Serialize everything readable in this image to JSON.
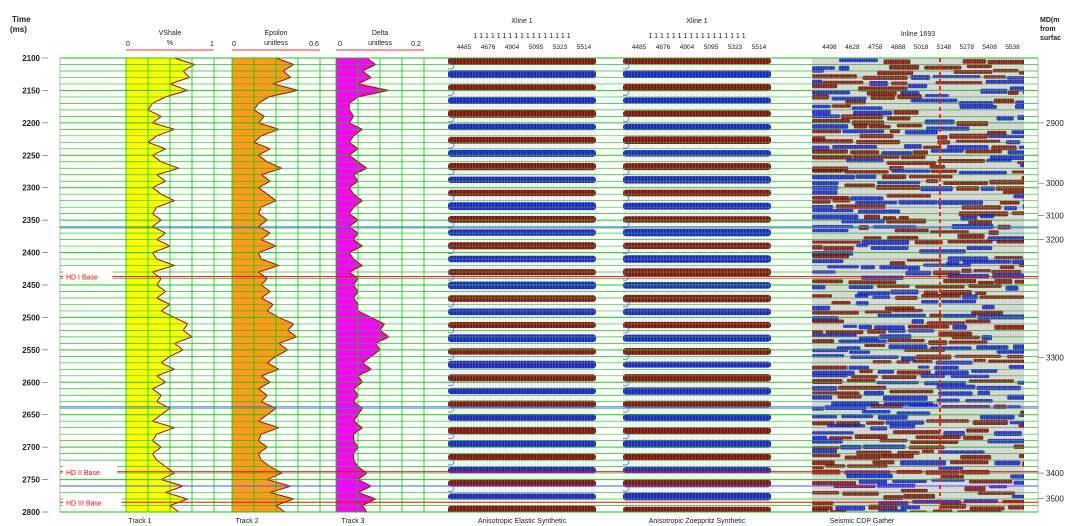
{
  "chart_data": {
    "type": "well-log-seismic-display",
    "time_axis": {
      "label_line1": "Time",
      "label_line2": "(ms)",
      "range": [
        2100,
        2800
      ],
      "ticks": [
        2100,
        2150,
        2200,
        2250,
        2300,
        2350,
        2400,
        2450,
        2500,
        2550,
        2600,
        2650,
        2700,
        2750,
        2800
      ]
    },
    "md_axis": {
      "label_line1": "MD(m",
      "label_line2": "from",
      "label_line3": "surfac",
      "ticks": [
        {
          "md": 2900,
          "time": 2200
        },
        {
          "md": 3000,
          "time": 2293
        },
        {
          "md": 3100,
          "time": 2343
        },
        {
          "md": 3200,
          "time": 2380
        },
        {
          "md": 3300,
          "time": 2562
        },
        {
          "md": 3400,
          "time": 2740
        },
        {
          "md": 3500,
          "time": 2779
        }
      ]
    },
    "horizons": [
      {
        "name": "HD I Base",
        "time": 2437
      },
      {
        "name": "HD II Base",
        "time": 2738
      },
      {
        "name": "HD III Base",
        "time": 2785
      }
    ],
    "blue_markers": [
      2362,
      2638,
      2760
    ],
    "log_tracks": [
      {
        "title": "VShale",
        "unit": "%",
        "min_label": "0",
        "max_label": "1",
        "min": 0,
        "max": 1,
        "fill": "#ffff00",
        "footer": "Track 1",
        "samples": [
          {
            "t": 2100,
            "v": 0.55
          },
          {
            "t": 2110,
            "v": 0.78
          },
          {
            "t": 2120,
            "v": 0.65
          },
          {
            "t": 2130,
            "v": 0.72
          },
          {
            "t": 2140,
            "v": 0.5
          },
          {
            "t": 2150,
            "v": 0.7
          },
          {
            "t": 2160,
            "v": 0.45
          },
          {
            "t": 2170,
            "v": 0.3
          },
          {
            "t": 2180,
            "v": 0.25
          },
          {
            "t": 2190,
            "v": 0.4
          },
          {
            "t": 2200,
            "v": 0.3
          },
          {
            "t": 2210,
            "v": 0.55
          },
          {
            "t": 2220,
            "v": 0.35
          },
          {
            "t": 2230,
            "v": 0.25
          },
          {
            "t": 2240,
            "v": 0.45
          },
          {
            "t": 2250,
            "v": 0.3
          },
          {
            "t": 2260,
            "v": 0.4
          },
          {
            "t": 2270,
            "v": 0.6
          },
          {
            "t": 2280,
            "v": 0.35
          },
          {
            "t": 2290,
            "v": 0.45
          },
          {
            "t": 2300,
            "v": 0.3
          },
          {
            "t": 2310,
            "v": 0.4
          },
          {
            "t": 2320,
            "v": 0.55
          },
          {
            "t": 2330,
            "v": 0.35
          },
          {
            "t": 2340,
            "v": 0.3
          },
          {
            "t": 2350,
            "v": 0.4
          },
          {
            "t": 2360,
            "v": 0.3
          },
          {
            "t": 2370,
            "v": 0.45
          },
          {
            "t": 2380,
            "v": 0.35
          },
          {
            "t": 2390,
            "v": 0.5
          },
          {
            "t": 2400,
            "v": 0.3
          },
          {
            "t": 2410,
            "v": 0.35
          },
          {
            "t": 2420,
            "v": 0.55
          },
          {
            "t": 2430,
            "v": 0.3
          },
          {
            "t": 2440,
            "v": 0.4
          },
          {
            "t": 2450,
            "v": 0.35
          },
          {
            "t": 2460,
            "v": 0.45
          },
          {
            "t": 2470,
            "v": 0.35
          },
          {
            "t": 2480,
            "v": 0.5
          },
          {
            "t": 2490,
            "v": 0.4
          },
          {
            "t": 2500,
            "v": 0.55
          },
          {
            "t": 2510,
            "v": 0.7
          },
          {
            "t": 2520,
            "v": 0.65
          },
          {
            "t": 2530,
            "v": 0.75
          },
          {
            "t": 2540,
            "v": 0.55
          },
          {
            "t": 2550,
            "v": 0.65
          },
          {
            "t": 2560,
            "v": 0.5
          },
          {
            "t": 2570,
            "v": 0.4
          },
          {
            "t": 2580,
            "v": 0.55
          },
          {
            "t": 2590,
            "v": 0.35
          },
          {
            "t": 2600,
            "v": 0.45
          },
          {
            "t": 2610,
            "v": 0.3
          },
          {
            "t": 2620,
            "v": 0.4
          },
          {
            "t": 2630,
            "v": 0.35
          },
          {
            "t": 2640,
            "v": 0.5
          },
          {
            "t": 2650,
            "v": 0.4
          },
          {
            "t": 2660,
            "v": 0.3
          },
          {
            "t": 2670,
            "v": 0.55
          },
          {
            "t": 2680,
            "v": 0.35
          },
          {
            "t": 2690,
            "v": 0.3
          },
          {
            "t": 2700,
            "v": 0.4
          },
          {
            "t": 2710,
            "v": 0.3
          },
          {
            "t": 2720,
            "v": 0.35
          },
          {
            "t": 2730,
            "v": 0.45
          },
          {
            "t": 2740,
            "v": 0.55
          },
          {
            "t": 2750,
            "v": 0.4
          },
          {
            "t": 2760,
            "v": 0.65
          },
          {
            "t": 2770,
            "v": 0.45
          },
          {
            "t": 2780,
            "v": 0.7
          },
          {
            "t": 2790,
            "v": 0.5
          },
          {
            "t": 2800,
            "v": 0.6
          }
        ]
      },
      {
        "title": "Epsilon",
        "unit": "unitless",
        "min_label": "0",
        "max_label": "0.6",
        "min": 0,
        "max": 0.6,
        "fill": "#ff9a1f",
        "footer": "Track 2",
        "samples": [
          {
            "t": 2100,
            "v": 0.3
          },
          {
            "t": 2110,
            "v": 0.42
          },
          {
            "t": 2120,
            "v": 0.35
          },
          {
            "t": 2130,
            "v": 0.4
          },
          {
            "t": 2140,
            "v": 0.28
          },
          {
            "t": 2150,
            "v": 0.45
          },
          {
            "t": 2160,
            "v": 0.25
          },
          {
            "t": 2170,
            "v": 0.18
          },
          {
            "t": 2180,
            "v": 0.15
          },
          {
            "t": 2190,
            "v": 0.22
          },
          {
            "t": 2200,
            "v": 0.18
          },
          {
            "t": 2210,
            "v": 0.32
          },
          {
            "t": 2220,
            "v": 0.2
          },
          {
            "t": 2230,
            "v": 0.15
          },
          {
            "t": 2240,
            "v": 0.26
          },
          {
            "t": 2250,
            "v": 0.18
          },
          {
            "t": 2260,
            "v": 0.24
          },
          {
            "t": 2270,
            "v": 0.34
          },
          {
            "t": 2280,
            "v": 0.2
          },
          {
            "t": 2290,
            "v": 0.26
          },
          {
            "t": 2300,
            "v": 0.18
          },
          {
            "t": 2310,
            "v": 0.24
          },
          {
            "t": 2320,
            "v": 0.3
          },
          {
            "t": 2330,
            "v": 0.2
          },
          {
            "t": 2340,
            "v": 0.18
          },
          {
            "t": 2350,
            "v": 0.24
          },
          {
            "t": 2360,
            "v": 0.18
          },
          {
            "t": 2370,
            "v": 0.26
          },
          {
            "t": 2380,
            "v": 0.2
          },
          {
            "t": 2390,
            "v": 0.3
          },
          {
            "t": 2400,
            "v": 0.18
          },
          {
            "t": 2410,
            "v": 0.2
          },
          {
            "t": 2420,
            "v": 0.32
          },
          {
            "t": 2430,
            "v": 0.18
          },
          {
            "t": 2440,
            "v": 0.24
          },
          {
            "t": 2450,
            "v": 0.2
          },
          {
            "t": 2460,
            "v": 0.26
          },
          {
            "t": 2470,
            "v": 0.2
          },
          {
            "t": 2480,
            "v": 0.28
          },
          {
            "t": 2490,
            "v": 0.24
          },
          {
            "t": 2500,
            "v": 0.32
          },
          {
            "t": 2510,
            "v": 0.42
          },
          {
            "t": 2520,
            "v": 0.38
          },
          {
            "t": 2530,
            "v": 0.44
          },
          {
            "t": 2540,
            "v": 0.32
          },
          {
            "t": 2550,
            "v": 0.38
          },
          {
            "t": 2560,
            "v": 0.3
          },
          {
            "t": 2570,
            "v": 0.24
          },
          {
            "t": 2580,
            "v": 0.32
          },
          {
            "t": 2590,
            "v": 0.2
          },
          {
            "t": 2600,
            "v": 0.26
          },
          {
            "t": 2610,
            "v": 0.18
          },
          {
            "t": 2620,
            "v": 0.24
          },
          {
            "t": 2630,
            "v": 0.2
          },
          {
            "t": 2640,
            "v": 0.3
          },
          {
            "t": 2650,
            "v": 0.24
          },
          {
            "t": 2660,
            "v": 0.18
          },
          {
            "t": 2670,
            "v": 0.32
          },
          {
            "t": 2680,
            "v": 0.2
          },
          {
            "t": 2690,
            "v": 0.18
          },
          {
            "t": 2700,
            "v": 0.24
          },
          {
            "t": 2710,
            "v": 0.18
          },
          {
            "t": 2720,
            "v": 0.2
          },
          {
            "t": 2730,
            "v": 0.26
          },
          {
            "t": 2740,
            "v": 0.34
          },
          {
            "t": 2750,
            "v": 0.24
          },
          {
            "t": 2760,
            "v": 0.4
          },
          {
            "t": 2770,
            "v": 0.26
          },
          {
            "t": 2780,
            "v": 0.42
          },
          {
            "t": 2790,
            "v": 0.3
          },
          {
            "t": 2800,
            "v": 0.36
          }
        ]
      },
      {
        "title": "Delta",
        "unit": "unitless",
        "min_label": "0",
        "max_label": "0.2",
        "min": 0,
        "max": 0.2,
        "fill": "#ff00ff",
        "footer": "Track 3",
        "samples": [
          {
            "t": 2100,
            "v": 0.07
          },
          {
            "t": 2110,
            "v": 0.09
          },
          {
            "t": 2120,
            "v": 0.06
          },
          {
            "t": 2130,
            "v": 0.08
          },
          {
            "t": 2140,
            "v": 0.05
          },
          {
            "t": 2150,
            "v": 0.12
          },
          {
            "t": 2160,
            "v": 0.05
          },
          {
            "t": 2170,
            "v": 0.03
          },
          {
            "t": 2180,
            "v": 0.03
          },
          {
            "t": 2190,
            "v": 0.04
          },
          {
            "t": 2200,
            "v": 0.03
          },
          {
            "t": 2210,
            "v": 0.06
          },
          {
            "t": 2220,
            "v": 0.04
          },
          {
            "t": 2230,
            "v": 0.03
          },
          {
            "t": 2240,
            "v": 0.05
          },
          {
            "t": 2250,
            "v": 0.03
          },
          {
            "t": 2260,
            "v": 0.05
          },
          {
            "t": 2270,
            "v": 0.07
          },
          {
            "t": 2280,
            "v": 0.04
          },
          {
            "t": 2290,
            "v": 0.05
          },
          {
            "t": 2300,
            "v": 0.03
          },
          {
            "t": 2310,
            "v": 0.04
          },
          {
            "t": 2320,
            "v": 0.06
          },
          {
            "t": 2330,
            "v": 0.04
          },
          {
            "t": 2340,
            "v": 0.03
          },
          {
            "t": 2350,
            "v": 0.05
          },
          {
            "t": 2360,
            "v": 0.03
          },
          {
            "t": 2370,
            "v": 0.05
          },
          {
            "t": 2380,
            "v": 0.04
          },
          {
            "t": 2390,
            "v": 0.06
          },
          {
            "t": 2400,
            "v": 0.03
          },
          {
            "t": 2410,
            "v": 0.04
          },
          {
            "t": 2420,
            "v": 0.06
          },
          {
            "t": 2430,
            "v": 0.03
          },
          {
            "t": 2440,
            "v": 0.05
          },
          {
            "t": 2450,
            "v": 0.04
          },
          {
            "t": 2460,
            "v": 0.05
          },
          {
            "t": 2470,
            "v": 0.04
          },
          {
            "t": 2480,
            "v": 0.05
          },
          {
            "t": 2490,
            "v": 0.05
          },
          {
            "t": 2500,
            "v": 0.08
          },
          {
            "t": 2510,
            "v": 0.11
          },
          {
            "t": 2520,
            "v": 0.1
          },
          {
            "t": 2530,
            "v": 0.12
          },
          {
            "t": 2540,
            "v": 0.09
          },
          {
            "t": 2550,
            "v": 0.1
          },
          {
            "t": 2560,
            "v": 0.08
          },
          {
            "t": 2570,
            "v": 0.06
          },
          {
            "t": 2580,
            "v": 0.08
          },
          {
            "t": 2590,
            "v": 0.05
          },
          {
            "t": 2600,
            "v": 0.06
          },
          {
            "t": 2610,
            "v": 0.04
          },
          {
            "t": 2620,
            "v": 0.05
          },
          {
            "t": 2630,
            "v": 0.04
          },
          {
            "t": 2640,
            "v": 0.06
          },
          {
            "t": 2650,
            "v": 0.05
          },
          {
            "t": 2660,
            "v": 0.04
          },
          {
            "t": 2670,
            "v": 0.06
          },
          {
            "t": 2680,
            "v": 0.04
          },
          {
            "t": 2690,
            "v": 0.04
          },
          {
            "t": 2700,
            "v": 0.05
          },
          {
            "t": 2710,
            "v": 0.04
          },
          {
            "t": 2720,
            "v": 0.04
          },
          {
            "t": 2730,
            "v": 0.05
          },
          {
            "t": 2740,
            "v": 0.07
          },
          {
            "t": 2750,
            "v": 0.05
          },
          {
            "t": 2760,
            "v": 0.08
          },
          {
            "t": 2770,
            "v": 0.05
          },
          {
            "t": 2780,
            "v": 0.09
          },
          {
            "t": 2790,
            "v": 0.06
          },
          {
            "t": 2800,
            "v": 0.07
          }
        ]
      }
    ],
    "seismic_panels": [
      {
        "title": "Xline 1",
        "ones_row": "1 1 1 1 1 1 1 1 1 1 1 1 1 1 1 1 1",
        "trace_labels": [
          "4485",
          "4676",
          "4904",
          "5095",
          "5323",
          "5514"
        ],
        "footer": "Anisotropic Elastic Synthetic",
        "style": "synthetic"
      },
      {
        "title": "Xline 1",
        "ones_row": "1 1 1 1 1 1 1 1 1 1 1 1 1 1 1 1 1",
        "trace_labels": [
          "4485",
          "4676",
          "4904",
          "5095",
          "5323",
          "5514"
        ],
        "footer": "Anisotropic Zoeppritz Synthetic",
        "style": "synthetic"
      },
      {
        "title": "Inline 1693",
        "ones_row": "",
        "trace_labels": [
          "4498",
          "4628",
          "4758",
          "4888",
          "5018",
          "5148",
          "5278",
          "5408",
          "5538"
        ],
        "footer": "Seismic CDP Gather",
        "style": "gather"
      }
    ],
    "colors": {
      "grid": "#00cc00",
      "horizon": "#ff0000",
      "marker": "#4060ff",
      "positive": "#7a0000",
      "negative": "#1010c8",
      "wiggle": "#dddddd"
    }
  }
}
